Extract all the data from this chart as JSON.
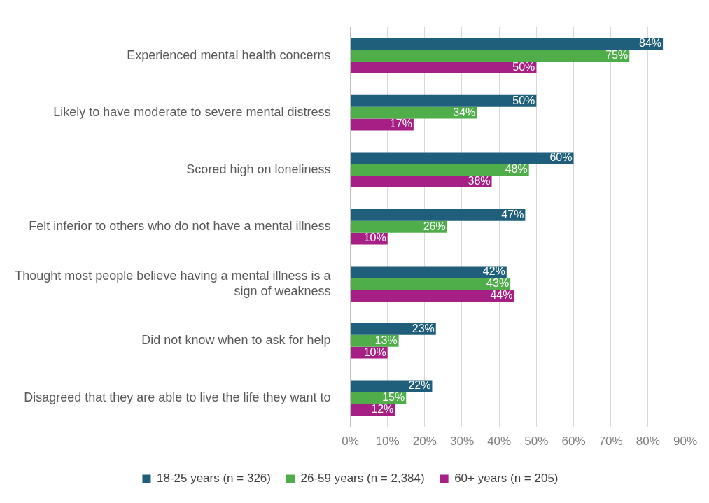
{
  "chart_data": {
    "type": "bar",
    "orientation": "horizontal",
    "categories": [
      "Experienced mental health concerns",
      "Likely to have moderate to severe mental distress",
      "Scored high on loneliness",
      "Felt inferior to others who do not have a mental illness",
      "Thought most people believe having a mental illness is a sign of weakness",
      "Did not know when to ask for help",
      "Disagreed that they are able to live the life they want to"
    ],
    "series": [
      {
        "name": "18-25 years (n = 326)",
        "color": "#1f5f7c",
        "values": [
          84,
          50,
          60,
          47,
          42,
          23,
          22
        ],
        "value_labels": [
          "84%",
          "50%",
          "60%",
          "47%",
          "42%",
          "23%",
          "22%"
        ]
      },
      {
        "name": "26-59 years (n = 2,384)",
        "color": "#4fae4a",
        "values": [
          75,
          34,
          48,
          26,
          43,
          13,
          15
        ],
        "value_labels": [
          "75%",
          "34%",
          "48%",
          "26%",
          "43%",
          "13%",
          "15%"
        ]
      },
      {
        "name": "60+ years (n = 205)",
        "color": "#a61f84",
        "values": [
          50,
          17,
          38,
          10,
          44,
          10,
          12
        ],
        "value_labels": [
          "50%",
          "17%",
          "38%",
          "10%",
          "44%",
          "10%",
          "12%"
        ]
      }
    ],
    "xlim": [
      0,
      90
    ],
    "xticks": [
      {
        "value": 0,
        "label": "0%"
      },
      {
        "value": 10,
        "label": "10%"
      },
      {
        "value": 20,
        "label": "20%"
      },
      {
        "value": 30,
        "label": "30%"
      },
      {
        "value": 40,
        "label": "40%"
      },
      {
        "value": 50,
        "label": "50%"
      },
      {
        "value": 60,
        "label": "60%"
      },
      {
        "value": 70,
        "label": "70%"
      },
      {
        "value": 80,
        "label": "80%"
      },
      {
        "value": 90,
        "label": "90%"
      }
    ],
    "grid": "x",
    "legend": "bottom"
  }
}
